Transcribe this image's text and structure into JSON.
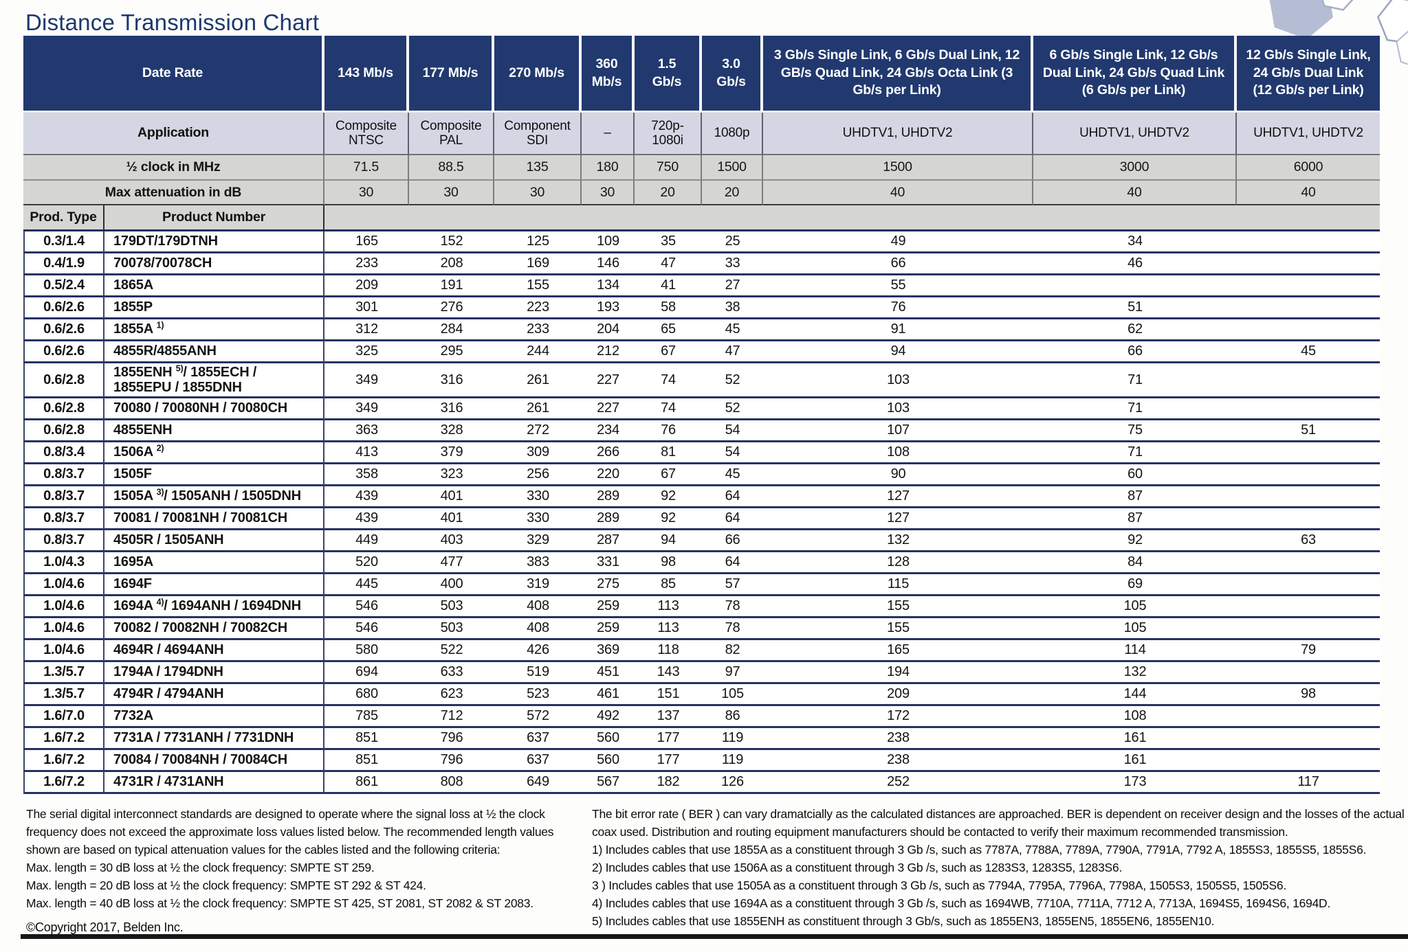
{
  "title": "Distance Transmission Chart",
  "colors": {
    "header_navy": "#21396f",
    "row_line_navy": "#263264",
    "application_bg": "#d4d7e3",
    "gray_row_bg": "#d5d6d3",
    "title_navy": "#1b396d"
  },
  "table": {
    "header": {
      "date_rate_label": "Date Rate",
      "application_label": "Application",
      "clock_label": "½ clock in MHz",
      "attenuation_label": "Max attenuation in dB",
      "prod_type_label": "Prod. Type",
      "product_number_label": "Product Number",
      "columns": [
        {
          "rate": "143 Mb/s",
          "application": "Composite NTSC",
          "clock": "71.5",
          "attenuation": "30"
        },
        {
          "rate": "177 Mb/s",
          "application": "Composite PAL",
          "clock": "88.5",
          "attenuation": "30"
        },
        {
          "rate": "270 Mb/s",
          "application": "Component SDI",
          "clock": "135",
          "attenuation": "30"
        },
        {
          "rate": "360 Mb/s",
          "application": "–",
          "clock": "180",
          "attenuation": "30"
        },
        {
          "rate": "1.5 Gb/s",
          "application": "720p-1080i",
          "clock": "750",
          "attenuation": "20"
        },
        {
          "rate": "3.0 Gb/s",
          "application": "1080p",
          "clock": "1500",
          "attenuation": "20"
        },
        {
          "rate": "3 Gb/s Single Link, 6 Gb/s Dual Link, 12 GB/s Quad Link, 24 Gb/s Octa Link (3 Gb/s per Link)",
          "application": "UHDTV1, UHDTV2",
          "clock": "1500",
          "attenuation": "40"
        },
        {
          "rate": "6 Gb/s Single Link, 12 Gb/s Dual Link, 24 Gb/s Quad Link (6 Gb/s per Link)",
          "application": "UHDTV1, UHDTV2",
          "clock": "3000",
          "attenuation": "40"
        },
        {
          "rate": "12 Gb/s Single Link, 24 Gb/s Dual Link (12 Gb/s per Link)",
          "application": "UHDTV1, UHDTV2",
          "clock": "6000",
          "attenuation": "40"
        }
      ]
    },
    "rows": [
      {
        "type": "0.3/1.4",
        "product": "179DT/179DTNH",
        "sup": "",
        "post": "",
        "values": [
          "165",
          "152",
          "125",
          "109",
          "35",
          "25",
          "49",
          "34",
          ""
        ]
      },
      {
        "type": "0.4/1.9",
        "product": "70078/70078CH",
        "sup": "",
        "post": "",
        "values": [
          "233",
          "208",
          "169",
          "146",
          "47",
          "33",
          "66",
          "46",
          ""
        ]
      },
      {
        "type": "0.5/2.4",
        "product": "1865A",
        "sup": "",
        "post": "",
        "values": [
          "209",
          "191",
          "155",
          "134",
          "41",
          "27",
          "55",
          "",
          ""
        ]
      },
      {
        "type": "0.6/2.6",
        "product": "1855P",
        "sup": "",
        "post": "",
        "values": [
          "301",
          "276",
          "223",
          "193",
          "58",
          "38",
          "76",
          "51",
          ""
        ]
      },
      {
        "type": "0.6/2.6",
        "product": "1855A ",
        "sup": "1)",
        "post": "",
        "values": [
          "312",
          "284",
          "233",
          "204",
          "65",
          "45",
          "91",
          "62",
          ""
        ]
      },
      {
        "type": "0.6/2.6",
        "product": "4855R/4855ANH",
        "sup": "",
        "post": "",
        "values": [
          "325",
          "295",
          "244",
          "212",
          "67",
          "47",
          "94",
          "66",
          "45"
        ]
      },
      {
        "type": "0.6/2.8",
        "product": "1855ENH ",
        "sup": "5)",
        "post": "/ 1855ECH /\n1855EPU / 1855DNH",
        "tall": true,
        "values": [
          "349",
          "316",
          "261",
          "227",
          "74",
          "52",
          "103",
          "71",
          ""
        ]
      },
      {
        "type": "0.6/2.8",
        "product": "70080 / 70080NH / 70080CH",
        "sup": "",
        "post": "",
        "values": [
          "349",
          "316",
          "261",
          "227",
          "74",
          "52",
          "103",
          "71",
          ""
        ]
      },
      {
        "type": "0.6/2.8",
        "product": "4855ENH",
        "sup": "",
        "post": "",
        "values": [
          "363",
          "328",
          "272",
          "234",
          "76",
          "54",
          "107",
          "75",
          "51"
        ]
      },
      {
        "type": "0.8/3.4",
        "product": "1506A ",
        "sup": "2)",
        "post": "",
        "values": [
          "413",
          "379",
          "309",
          "266",
          "81",
          "54",
          "108",
          "71",
          ""
        ]
      },
      {
        "type": "0.8/3.7",
        "product": "1505F",
        "sup": "",
        "post": "",
        "values": [
          "358",
          "323",
          "256",
          "220",
          "67",
          "45",
          "90",
          "60",
          ""
        ]
      },
      {
        "type": "0.8/3.7",
        "product": "1505A ",
        "sup": "3)",
        "post": "/ 1505ANH / 1505DNH",
        "values": [
          "439",
          "401",
          "330",
          "289",
          "92",
          "64",
          "127",
          "87",
          ""
        ]
      },
      {
        "type": "0.8/3.7",
        "product": "70081 / 70081NH / 70081CH",
        "sup": "",
        "post": "",
        "values": [
          "439",
          "401",
          "330",
          "289",
          "92",
          "64",
          "127",
          "87",
          ""
        ]
      },
      {
        "type": "0.8/3.7",
        "product": "4505R / 1505ANH",
        "sup": "",
        "post": "",
        "values": [
          "449",
          "403",
          "329",
          "287",
          "94",
          "66",
          "132",
          "92",
          "63"
        ]
      },
      {
        "type": "1.0/4.3",
        "product": "1695A",
        "sup": "",
        "post": "",
        "values": [
          "520",
          "477",
          "383",
          "331",
          "98",
          "64",
          "128",
          "84",
          ""
        ]
      },
      {
        "type": "1.0/4.6",
        "product": "1694F",
        "sup": "",
        "post": "",
        "values": [
          "445",
          "400",
          "319",
          "275",
          "85",
          "57",
          "115",
          "69",
          ""
        ]
      },
      {
        "type": "1.0/4.6",
        "product": "1694A ",
        "sup": "4)",
        "post": "/ 1694ANH / 1694DNH",
        "values": [
          "546",
          "503",
          "408",
          "259",
          "113",
          "78",
          "155",
          "105",
          ""
        ]
      },
      {
        "type": "1.0/4.6",
        "product": "70082 / 70082NH / 70082CH",
        "sup": "",
        "post": "",
        "values": [
          "546",
          "503",
          "408",
          "259",
          "113",
          "78",
          "155",
          "105",
          ""
        ]
      },
      {
        "type": "1.0/4.6",
        "product": "4694R / 4694ANH",
        "sup": "",
        "post": "",
        "values": [
          "580",
          "522",
          "426",
          "369",
          "118",
          "82",
          "165",
          "114",
          "79"
        ]
      },
      {
        "type": "1.3/5.7",
        "product": "1794A / 1794DNH",
        "sup": "",
        "post": "",
        "values": [
          "694",
          "633",
          "519",
          "451",
          "143",
          "97",
          "194",
          "132",
          ""
        ]
      },
      {
        "type": "1.3/5.7",
        "product": "4794R / 4794ANH",
        "sup": "",
        "post": "",
        "values": [
          "680",
          "623",
          "523",
          "461",
          "151",
          "105",
          "209",
          "144",
          "98"
        ]
      },
      {
        "type": "1.6/7.0",
        "product": "7732A",
        "sup": "",
        "post": "",
        "values": [
          "785",
          "712",
          "572",
          "492",
          "137",
          "86",
          "172",
          "108",
          ""
        ]
      },
      {
        "type": "1.6/7.2",
        "product": "7731A / 7731ANH / 7731DNH",
        "sup": "",
        "post": "",
        "values": [
          "851",
          "796",
          "637",
          "560",
          "177",
          "119",
          "238",
          "161",
          ""
        ]
      },
      {
        "type": "1.6/7.2",
        "product": "70084 / 70084NH / 70084CH",
        "sup": "",
        "post": "",
        "values": [
          "851",
          "796",
          "637",
          "560",
          "177",
          "119",
          "238",
          "161",
          ""
        ]
      },
      {
        "type": "1.6/7.2",
        "product": "4731R / 4731ANH",
        "sup": "",
        "post": "",
        "values": [
          "861",
          "808",
          "649",
          "567",
          "182",
          "126",
          "252",
          "173",
          "117"
        ]
      }
    ]
  },
  "footnotes": {
    "left_intro": "The serial digital interconnect standards are designed to operate where the signal loss at ½ the clock frequency does not exceed the approximate loss values listed below. The recommended length values shown are based on typical attenuation values for the cables listed and the following criteria:",
    "left_lines": [
      "Max. length = 30 dB loss at ½ the clock frequency: SMPTE ST 259.",
      "Max. length = 20 dB loss at ½ the clock frequency: SMPTE ST 292 & ST 424.",
      "Max. length = 40 dB loss at ½ the clock frequency: SMPTE ST 425, ST 2081, ST 2082 & ST 2083."
    ],
    "copyright": "©Copyright 2017, Belden Inc.",
    "right_intro": "The bit error rate ( BER ) can vary dramatcially as the calculated distances are approached. BER is dependent on receiver design and the losses of the actual coax used. Distribution and routing equipment manufacturers should be contacted to verify their maximum recommended transmission.",
    "right_lines": [
      "1) Includes cables that use 1855A as a constituent through 3 Gb /s, such as 7787A, 7788A, 7789A, 7790A, 7791A, 7792 A, 1855S3, 1855S5, 1855S6.",
      "2) Includes cables that use 1506A as a constituent through 3 Gb /s, such as 1283S3, 1283S5, 1283S6.",
      "3 ) Includes cables that use 1505A as a constituent through 3 Gb /s, such as 7794A, 7795A, 7796A, 7798A, 1505S3, 1505S5, 1505S6.",
      "4) Includes cables that use 1694A as a constituent through 3 Gb /s, such as 1694WB, 7710A, 7711A, 7712 A, 7713A, 1694S5, 1694S6, 1694D.",
      "5) Includes cables that use 1855ENH as constituent through 3 Gb/s, such as 1855EN3, 1855EN5, 1855EN6, 1855EN10."
    ]
  }
}
